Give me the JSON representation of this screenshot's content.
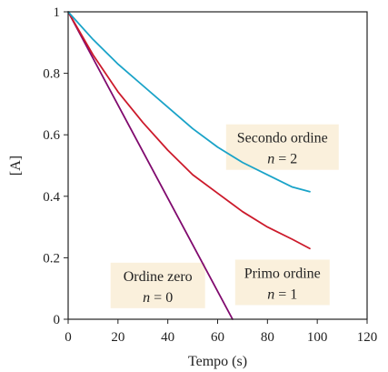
{
  "chart_data": {
    "type": "line",
    "xlabel": "Tempo (s)",
    "ylabel": "[A]",
    "xlim": [
      0,
      120
    ],
    "ylim": [
      0,
      1
    ],
    "xticks": [
      0,
      20,
      40,
      60,
      80,
      100,
      120
    ],
    "yticks": [
      0,
      0.2,
      0.4,
      0.6,
      0.8,
      1
    ],
    "ytick_labels": [
      "0",
      "0.2",
      "0.4",
      "0.6",
      "0.8",
      "1"
    ],
    "grid": false,
    "series": [
      {
        "color": "#800a6e",
        "points": [
          [
            0,
            1
          ],
          [
            66,
            0
          ]
        ]
      },
      {
        "color": "#cc1a2b",
        "points": [
          [
            0,
            1
          ],
          [
            10,
            0.86
          ],
          [
            20,
            0.74
          ],
          [
            30,
            0.64
          ],
          [
            40,
            0.55
          ],
          [
            50,
            0.47
          ],
          [
            60,
            0.41
          ],
          [
            70,
            0.35
          ],
          [
            80,
            0.3
          ],
          [
            90,
            0.26
          ],
          [
            97,
            0.23
          ]
        ]
      },
      {
        "color": "#1aa3c8",
        "points": [
          [
            0,
            1
          ],
          [
            10,
            0.91
          ],
          [
            20,
            0.83
          ],
          [
            30,
            0.76
          ],
          [
            40,
            0.69
          ],
          [
            50,
            0.62
          ],
          [
            60,
            0.56
          ],
          [
            70,
            0.51
          ],
          [
            80,
            0.47
          ],
          [
            90,
            0.43
          ],
          [
            97,
            0.415
          ]
        ]
      }
    ],
    "annotations": [
      {
        "line1": "Secondo ordine",
        "var": "n",
        "eq": " = 2",
        "at": [
          86,
          0.56
        ],
        "bg": "#faf0dc"
      },
      {
        "line1": "Primo ordine",
        "var": "n",
        "eq": " = 1",
        "at": [
          86,
          0.12
        ],
        "bg": "#faf0dc"
      },
      {
        "line1": "Ordine zero",
        "var": "n",
        "eq": " = 0",
        "at": [
          36,
          0.11
        ],
        "bg": "#faf0dc"
      }
    ]
  }
}
